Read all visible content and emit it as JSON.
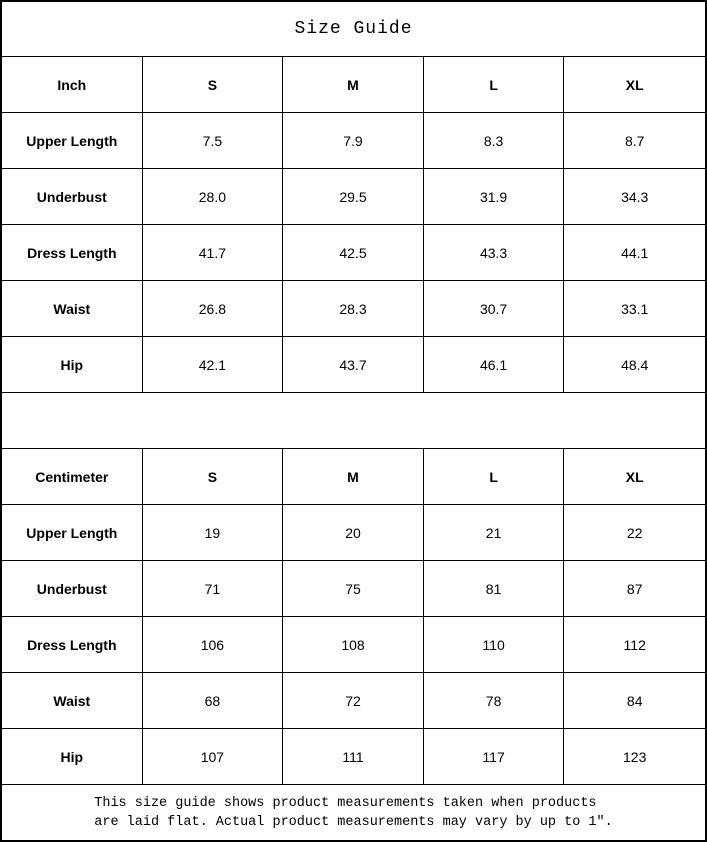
{
  "title": "Size Guide",
  "colors": {
    "border": "#000000",
    "text": "#000000",
    "background": "#ffffff"
  },
  "tables": [
    {
      "unit_header": "Inch",
      "size_headers": [
        "S",
        "M",
        "L",
        "XL"
      ],
      "rows": [
        {
          "label": "Upper Length",
          "values": [
            "7.5",
            "7.9",
            "8.3",
            "8.7"
          ]
        },
        {
          "label": "Underbust",
          "values": [
            "28.0",
            "29.5",
            "31.9",
            "34.3"
          ]
        },
        {
          "label": "Dress Length",
          "values": [
            "41.7",
            "42.5",
            "43.3",
            "44.1"
          ]
        },
        {
          "label": "Waist",
          "values": [
            "26.8",
            "28.3",
            "30.7",
            "33.1"
          ]
        },
        {
          "label": "Hip",
          "values": [
            "42.1",
            "43.7",
            "46.1",
            "48.4"
          ]
        }
      ]
    },
    {
      "unit_header": "Centimeter",
      "size_headers": [
        "S",
        "M",
        "L",
        "XL"
      ],
      "rows": [
        {
          "label": "Upper Length",
          "values": [
            "19",
            "20",
            "21",
            "22"
          ]
        },
        {
          "label": "Underbust",
          "values": [
            "71",
            "75",
            "81",
            "87"
          ]
        },
        {
          "label": "Dress Length",
          "values": [
            "106",
            "108",
            "110",
            "112"
          ]
        },
        {
          "label": "Waist",
          "values": [
            "68",
            "72",
            "78",
            "84"
          ]
        },
        {
          "label": "Hip",
          "values": [
            "107",
            "111",
            "117",
            "123"
          ]
        }
      ]
    }
  ],
  "footer_note_line1": "This size guide shows product measurements taken when products",
  "footer_note_line2": "are laid flat. Actual product measurements may vary by up to 1″."
}
